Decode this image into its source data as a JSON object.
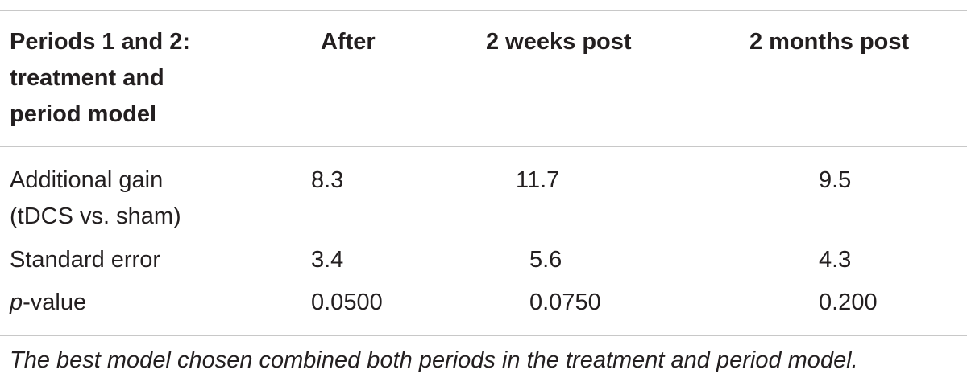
{
  "table": {
    "headers": [
      [
        "Periods 1 and 2:",
        "treatment and",
        "period model"
      ],
      "After",
      "2 weeks post",
      "2 months post"
    ],
    "rows": [
      {
        "label": [
          "Additional gain",
          "(tDCS vs. sham)"
        ],
        "values": [
          "8.3",
          "11.7",
          "9.5"
        ]
      },
      {
        "label": [
          "Standard error"
        ],
        "values": [
          "3.4",
          "5.6",
          "4.3"
        ]
      },
      {
        "label_italic_prefix": "p",
        "label_suffix": "-value",
        "values": [
          "0.0500",
          "0.0750",
          "0.200"
        ]
      }
    ],
    "footnote": "The best model chosen combined both periods in the treatment and period model."
  }
}
